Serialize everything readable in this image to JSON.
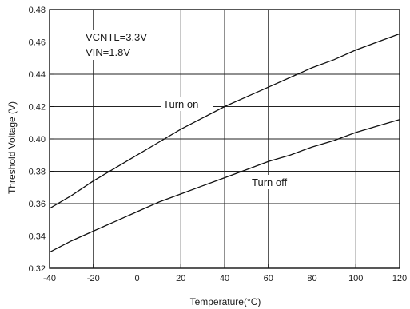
{
  "chart_data": {
    "type": "line",
    "xlabel": "Temperature(°C)",
    "ylabel": "Threshold Voltage (V)",
    "xlim": [
      -40,
      120
    ],
    "ylim": [
      0.32,
      0.48
    ],
    "x_ticks": [
      "-40",
      "-20",
      "0",
      "20",
      "40",
      "60",
      "80",
      "100",
      "120"
    ],
    "y_ticks": [
      "0.32",
      "0.34",
      "0.36",
      "0.38",
      "0.40",
      "0.42",
      "0.44",
      "0.46",
      "0.48"
    ],
    "grid": true,
    "conditions": [
      "VCNTL=3.3V",
      "VIN=1.8V"
    ],
    "series": [
      {
        "name": "Turn on",
        "x": [
          -40,
          -30,
          -20,
          -10,
          0,
          10,
          20,
          30,
          40,
          50,
          60,
          70,
          80,
          90,
          100,
          110,
          120
        ],
        "values": [
          0.357,
          0.365,
          0.374,
          0.382,
          0.39,
          0.398,
          0.406,
          0.413,
          0.42,
          0.426,
          0.432,
          0.438,
          0.444,
          0.449,
          0.455,
          0.46,
          0.465
        ]
      },
      {
        "name": "Turn off",
        "x": [
          -40,
          -30,
          -20,
          -10,
          0,
          10,
          20,
          30,
          40,
          50,
          60,
          70,
          80,
          90,
          100,
          110,
          120
        ],
        "values": [
          0.33,
          0.337,
          0.343,
          0.349,
          0.355,
          0.361,
          0.366,
          0.371,
          0.376,
          0.381,
          0.386,
          0.39,
          0.395,
          0.399,
          0.404,
          0.408,
          0.412
        ]
      }
    ]
  }
}
